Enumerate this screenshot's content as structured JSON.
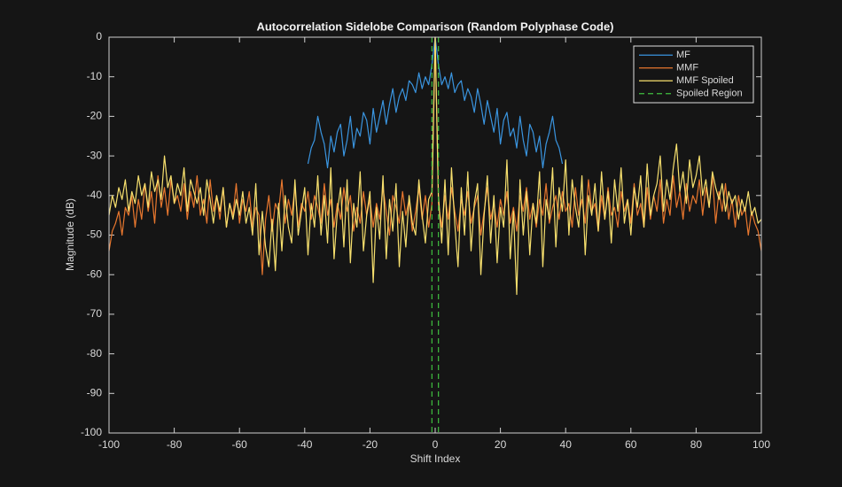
{
  "chart_data": {
    "type": "line",
    "title": "Autocorrelation Sidelobe Comparison (Random Polyphase Code)",
    "xlabel": "Shift Index",
    "ylabel": "Magnitude (dB)",
    "xlim": [
      -100,
      100
    ],
    "xticks": [
      -100,
      -80,
      -60,
      -40,
      -20,
      0,
      20,
      40,
      60,
      80,
      100
    ],
    "ylim": [
      -100,
      0
    ],
    "yticks": [
      -100,
      -90,
      -80,
      -70,
      -60,
      -50,
      -40,
      -30,
      -20,
      -10,
      0
    ],
    "legend": "northeast",
    "x": [
      -100,
      -99,
      -98,
      -97,
      -96,
      -95,
      -94,
      -93,
      -92,
      -91,
      -90,
      -89,
      -88,
      -87,
      -86,
      -85,
      -84,
      -83,
      -82,
      -81,
      -80,
      -79,
      -78,
      -77,
      -76,
      -75,
      -74,
      -73,
      -72,
      -71,
      -70,
      -69,
      -68,
      -67,
      -66,
      -65,
      -64,
      -63,
      -62,
      -61,
      -60,
      -59,
      -58,
      -57,
      -56,
      -55,
      -54,
      -53,
      -52,
      -51,
      -50,
      -49,
      -48,
      -47,
      -46,
      -45,
      -44,
      -43,
      -42,
      -41,
      -40,
      -39,
      -38,
      -37,
      -36,
      -35,
      -34,
      -33,
      -32,
      -31,
      -30,
      -29,
      -28,
      -27,
      -26,
      -25,
      -24,
      -23,
      -22,
      -21,
      -20,
      -19,
      -18,
      -17,
      -16,
      -15,
      -14,
      -13,
      -12,
      -11,
      -10,
      -9,
      -8,
      -7,
      -6,
      -5,
      -4,
      -3,
      -2,
      -1,
      0,
      1,
      2,
      3,
      4,
      5,
      6,
      7,
      8,
      9,
      10,
      11,
      12,
      13,
      14,
      15,
      16,
      17,
      18,
      19,
      20,
      21,
      22,
      23,
      24,
      25,
      26,
      27,
      28,
      29,
      30,
      31,
      32,
      33,
      34,
      35,
      36,
      37,
      38,
      39,
      40,
      41,
      42,
      43,
      44,
      45,
      46,
      47,
      48,
      49,
      50,
      51,
      52,
      53,
      54,
      55,
      56,
      57,
      58,
      59,
      60,
      61,
      62,
      63,
      64,
      65,
      66,
      67,
      68,
      69,
      70,
      71,
      72,
      73,
      74,
      75,
      76,
      77,
      78,
      79,
      80,
      81,
      82,
      83,
      84,
      85,
      86,
      87,
      88,
      89,
      90,
      91,
      92,
      93,
      94,
      95,
      96,
      97,
      98,
      99,
      100
    ],
    "series": [
      {
        "name": "MF",
        "color": "#3a95e0",
        "linestyle": "solid",
        "x": [
          -39,
          -38,
          -37,
          -36,
          -35,
          -34,
          -33,
          -32,
          -31,
          -30,
          -29,
          -28,
          -27,
          -26,
          -25,
          -24,
          -23,
          -22,
          -21,
          -20,
          -19,
          -18,
          -17,
          -16,
          -15,
          -14,
          -13,
          -12,
          -11,
          -10,
          -9,
          -8,
          -7,
          -6,
          -5,
          -4,
          -3,
          -2,
          -1,
          0,
          1,
          2,
          3,
          4,
          5,
          6,
          7,
          8,
          9,
          10,
          11,
          12,
          13,
          14,
          15,
          16,
          17,
          18,
          19,
          20,
          21,
          22,
          23,
          24,
          25,
          26,
          27,
          28,
          29,
          30,
          31,
          32,
          33,
          34,
          35,
          36,
          37,
          38,
          39
        ],
        "values": [
          -32,
          -28,
          -26,
          -20,
          -24,
          -27,
          -33,
          -25,
          -29,
          -24,
          -22,
          -30,
          -26,
          -20,
          -28,
          -23,
          -25,
          -19,
          -21,
          -27,
          -18,
          -24,
          -20,
          -16,
          -22,
          -17,
          -13,
          -19,
          -15,
          -13,
          -16,
          -11,
          -12,
          -14,
          -9,
          -13,
          -10,
          -12,
          -7,
          0,
          -7,
          -12,
          -10,
          -13,
          -9,
          -14,
          -12,
          -11,
          -16,
          -13,
          -15,
          -19,
          -13,
          -17,
          -22,
          -16,
          -20,
          -24,
          -18,
          -27,
          -21,
          -19,
          -25,
          -23,
          -28,
          -20,
          -26,
          -30,
          -22,
          -24,
          -29,
          -25,
          -33,
          -27,
          -24,
          -20,
          -26,
          -28,
          -32
        ]
      },
      {
        "name": "MMF",
        "color": "#e8772e",
        "linestyle": "solid",
        "values": [
          -54,
          -49,
          -47,
          -44,
          -50,
          -43,
          -45,
          -40,
          -48,
          -41,
          -46,
          -37,
          -44,
          -39,
          -47,
          -35,
          -43,
          -38,
          -45,
          -36,
          -42,
          -40,
          -44,
          -37,
          -46,
          -39,
          -43,
          -35,
          -45,
          -41,
          -47,
          -36,
          -44,
          -40,
          -46,
          -38,
          -48,
          -42,
          -45,
          -37,
          -47,
          -41,
          -44,
          -39,
          -48,
          -43,
          -45,
          -60,
          -46,
          -40,
          -49,
          -42,
          -44,
          -36,
          -47,
          -41,
          -45,
          -38,
          -48,
          -42,
          -44,
          -39,
          -46,
          -40,
          -43,
          -47,
          -37,
          -45,
          -41,
          -48,
          -42,
          -46,
          -38,
          -44,
          -40,
          -49,
          -43,
          -47,
          -39,
          -45,
          -41,
          -48,
          -42,
          -46,
          -38,
          -44,
          -50,
          -40,
          -43,
          -47,
          -39,
          -45,
          -41,
          -49,
          -44,
          -38,
          -46,
          -40,
          -48,
          -42,
          0,
          -42,
          -48,
          -40,
          -46,
          -38,
          -44,
          -49,
          -41,
          -45,
          -39,
          -47,
          -43,
          -40,
          -50,
          -44,
          -38,
          -46,
          -42,
          -48,
          -41,
          -45,
          -39,
          -47,
          -43,
          -49,
          -40,
          -44,
          -38,
          -46,
          -42,
          -48,
          -41,
          -45,
          -37,
          -47,
          -43,
          -40,
          -46,
          -39,
          -44,
          -42,
          -48,
          -38,
          -45,
          -41,
          -47,
          -36,
          -44,
          -42,
          -49,
          -40,
          -46,
          -38,
          -45,
          -43,
          -48,
          -39,
          -44,
          -41,
          -47,
          -37,
          -45,
          -42,
          -48,
          -38,
          -46,
          -40,
          -44,
          -36,
          -47,
          -41,
          -45,
          -35,
          -43,
          -39,
          -46,
          -37,
          -44,
          -40,
          -42,
          -36,
          -45,
          -38,
          -43,
          -35,
          -47,
          -39,
          -44,
          -37,
          -46,
          -41,
          -48,
          -40,
          -45,
          -43,
          -50,
          -44,
          -47,
          -49,
          -54
        ]
      },
      {
        "name": "MMF Spoiled",
        "color": "#f7e06e",
        "linestyle": "solid",
        "values": [
          -45,
          -40,
          -43,
          -38,
          -41,
          -36,
          -44,
          -39,
          -42,
          -35,
          -40,
          -37,
          -43,
          -34,
          -39,
          -36,
          -41,
          -30,
          -38,
          -35,
          -42,
          -37,
          -40,
          -33,
          -44,
          -36,
          -39,
          -42,
          -38,
          -45,
          -36,
          -41,
          -47,
          -40,
          -44,
          -38,
          -48,
          -42,
          -46,
          -41,
          -45,
          -39,
          -47,
          -43,
          -50,
          -37,
          -55,
          -44,
          -53,
          -58,
          -46,
          -59,
          -42,
          -54,
          -40,
          -48,
          -52,
          -36,
          -50,
          -44,
          -38,
          -55,
          -42,
          -48,
          -35,
          -50,
          -40,
          -52,
          -33,
          -56,
          -44,
          -38,
          -53,
          -36,
          -57,
          -42,
          -48,
          -34,
          -54,
          -45,
          -39,
          -62,
          -43,
          -51,
          -35,
          -56,
          -41,
          -49,
          -37,
          -58,
          -44,
          -53,
          -40,
          -47,
          -50,
          -36,
          -45,
          -52,
          -41,
          -39,
          0,
          -40,
          -52,
          -36,
          -55,
          -33,
          -47,
          -58,
          -38,
          -50,
          -34,
          -54,
          -42,
          -37,
          -60,
          -45,
          -35,
          -52,
          -40,
          -57,
          -43,
          -48,
          -31,
          -56,
          -44,
          -65,
          -36,
          -50,
          -39,
          -55,
          -42,
          -47,
          -34,
          -58,
          -41,
          -46,
          -33,
          -53,
          -38,
          -44,
          -31,
          -50,
          -36,
          -43,
          -48,
          -35,
          -55,
          -40,
          -45,
          -37,
          -49,
          -34,
          -46,
          -39,
          -52,
          -36,
          -44,
          -33,
          -47,
          -41,
          -50,
          -38,
          -43,
          -35,
          -48,
          -32,
          -45,
          -40,
          -37,
          -30,
          -44,
          -36,
          -41,
          -33,
          -27,
          -39,
          -34,
          -42,
          -31,
          -38,
          -35,
          -30,
          -40,
          -36,
          -43,
          -34,
          -38,
          -41,
          -37,
          -44,
          -39,
          -42,
          -40,
          -46,
          -41,
          -44,
          -39,
          -45,
          -43,
          -47,
          -46
        ]
      },
      {
        "name": "Spoiled Region",
        "color": "#3fbf3f",
        "linestyle": "dashed",
        "x": [
          -1,
          -1,
          null,
          1,
          1
        ],
        "values": [
          0,
          -100,
          null,
          0,
          -100
        ]
      }
    ]
  }
}
